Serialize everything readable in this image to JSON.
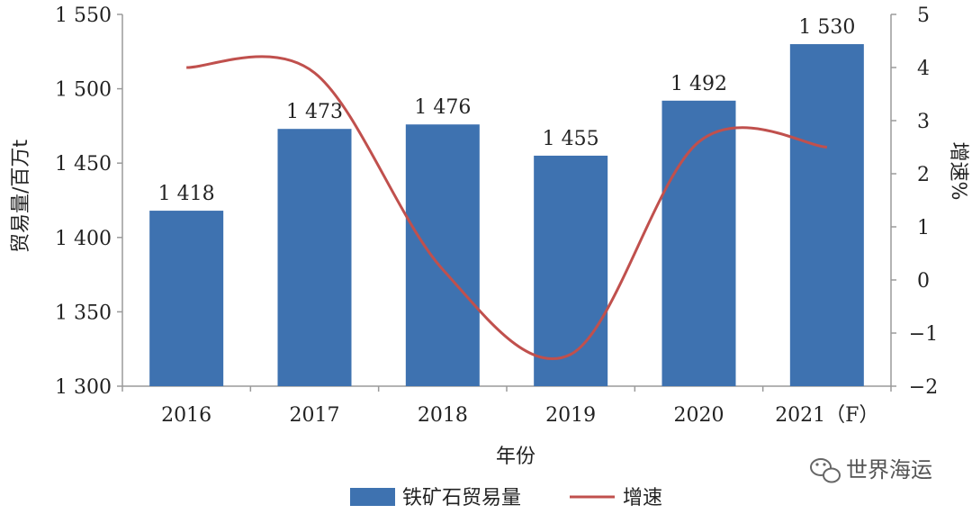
{
  "chart_data": {
    "type": "bar",
    "categories": [
      "2016",
      "2017",
      "2018",
      "2019",
      "2020",
      "2021（F）"
    ],
    "series": [
      {
        "name": "铁矿石贸易量",
        "type": "bar",
        "axis": "left",
        "values": [
          1418,
          1473,
          1476,
          1455,
          1492,
          1530
        ],
        "value_labels": [
          "1 418",
          "1 473",
          "1 476",
          "1 455",
          "1 492",
          "1 530"
        ],
        "color": "#3e72b0"
      },
      {
        "name": "增速",
        "type": "line",
        "axis": "right",
        "smooth": true,
        "values": [
          4.0,
          3.9,
          0.2,
          -1.4,
          2.6,
          2.5
        ],
        "color": "#c0504d"
      }
    ],
    "xlabel": "年份",
    "ylabel": "贸易量/百万t",
    "y2label": "增速%",
    "ylim": [
      1300,
      1550
    ],
    "y2lim": [
      -2,
      5
    ],
    "yticks": [
      "1 300",
      "1 350",
      "1 400",
      "1 450",
      "1 500",
      "1 550"
    ],
    "yticks_values": [
      1300,
      1350,
      1400,
      1450,
      1500,
      1550
    ],
    "y2ticks": [
      "−2",
      "−1",
      "0",
      "1",
      "2",
      "3",
      "4",
      "5"
    ],
    "y2ticks_values": [
      -2,
      -1,
      0,
      1,
      2,
      3,
      4,
      5
    ],
    "grid": false,
    "legend_position": "bottom"
  },
  "watermark": {
    "text": "世界海运",
    "icon": "wechat-icon"
  }
}
